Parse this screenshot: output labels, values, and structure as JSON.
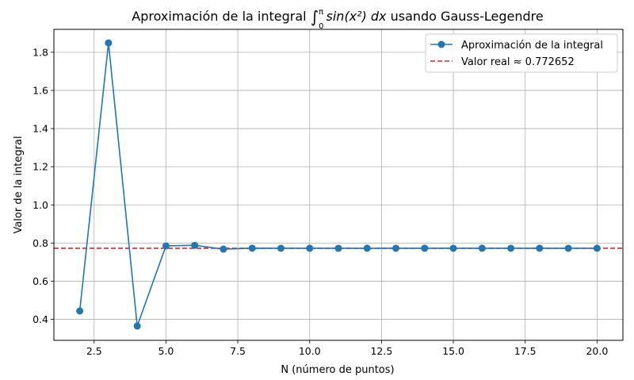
{
  "chart_data": {
    "type": "line",
    "title_prefix": "Aproximación de la integral ",
    "title_math_upper": "π",
    "title_math_lower": "0",
    "title_math_body": "sin(x²) dx",
    "title_suffix": " usando Gauss-Legendre",
    "xlabel": "N (número de puntos)",
    "ylabel": "Valor de la integral",
    "xlim": [
      1.1,
      20.9
    ],
    "ylim": [
      0.29,
      1.92
    ],
    "xticks": [
      2.5,
      5.0,
      7.5,
      10.0,
      12.5,
      15.0,
      17.5,
      20.0
    ],
    "xtick_labels": [
      "2.5",
      "5.0",
      "7.5",
      "10.0",
      "12.5",
      "15.0",
      "17.5",
      "20.0"
    ],
    "yticks": [
      0.4,
      0.6,
      0.8,
      1.0,
      1.2,
      1.4,
      1.6,
      1.8
    ],
    "ytick_labels": [
      "0.4",
      "0.6",
      "0.8",
      "1.0",
      "1.2",
      "1.4",
      "1.6",
      "1.8"
    ],
    "grid": true,
    "legend_placement": "top-right",
    "series": [
      {
        "name": "Aproximación de la integral",
        "color": "#1f77b4",
        "marker": "circle",
        "x": [
          2,
          3,
          4,
          5,
          6,
          7,
          8,
          9,
          10,
          11,
          12,
          13,
          14,
          15,
          16,
          17,
          18,
          19,
          20
        ],
        "y": [
          0.444,
          1.849,
          0.365,
          0.785,
          0.788,
          0.768,
          0.773,
          0.7726,
          0.7727,
          0.7726,
          0.7727,
          0.7726,
          0.7727,
          0.7726,
          0.7727,
          0.7726,
          0.7727,
          0.7726,
          0.7727
        ]
      }
    ],
    "reference_line": {
      "name": "Valor real ≈ 0.772652",
      "value": 0.772652,
      "color": "#d62728",
      "style": "dashed"
    }
  }
}
